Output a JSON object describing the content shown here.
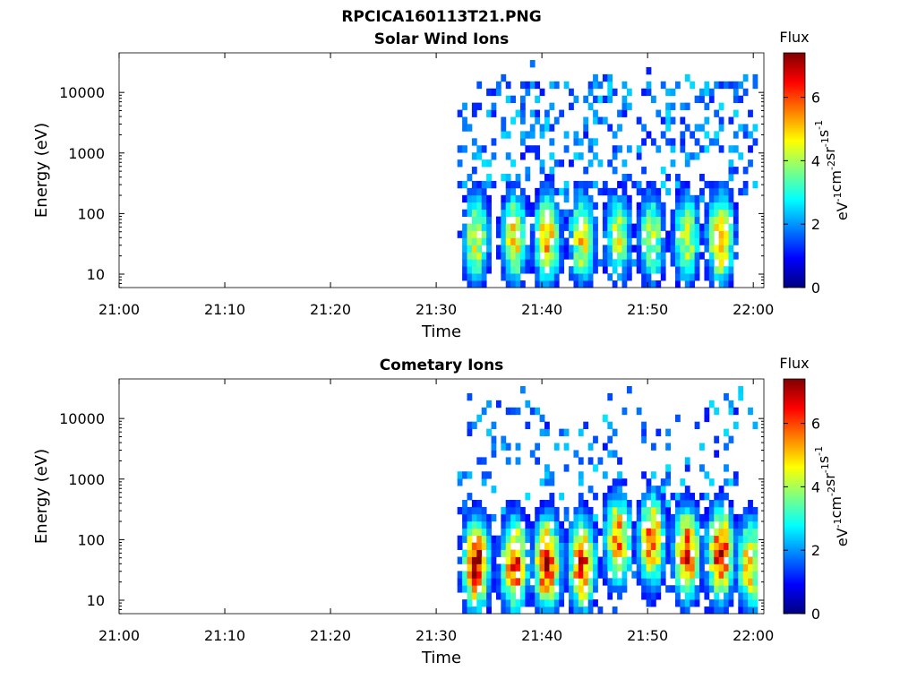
{
  "figure": {
    "title": "RPCICA160113T21.PNG"
  },
  "colors": {
    "colormap": [
      "#00007f",
      "#0000ff",
      "#0080ff",
      "#00ffff",
      "#80ff80",
      "#ffff00",
      "#ff8000",
      "#ff0000",
      "#7f0000"
    ],
    "axis": "#000000",
    "background": "#ffffff"
  },
  "chart_data": [
    {
      "type": "heatmap",
      "title": "Solar Wind Ions",
      "xlabel": "Time",
      "ylabel": "Energy (eV)",
      "x_range": [
        "21:00",
        "22:01"
      ],
      "y_scale": "log",
      "y_range": [
        6,
        45000
      ],
      "x_ticks": [
        "21:00",
        "21:10",
        "21:20",
        "21:30",
        "21:40",
        "21:50",
        "22:00"
      ],
      "y_ticks": [
        "10",
        "100",
        "1000",
        "10000"
      ],
      "data_start": "21:32",
      "colorbar": {
        "label": "Flux",
        "unit_parts": [
          "eV",
          "-1",
          "cm",
          "-2",
          "sr",
          "-1",
          "s",
          "-1"
        ],
        "range": [
          0,
          7.4
        ],
        "ticks": [
          "0",
          "2",
          "4",
          "6"
        ]
      },
      "bursts": [
        {
          "time": "21:33.8",
          "peak_energy": 40,
          "peak_flux": 4.8
        },
        {
          "time": "21:37.4",
          "peak_energy": 40,
          "peak_flux": 5.2
        },
        {
          "time": "21:40.5",
          "peak_energy": 40,
          "peak_flux": 5.5
        },
        {
          "time": "21:43.8",
          "peak_energy": 40,
          "peak_flux": 5.0
        },
        {
          "time": "21:47.2",
          "peak_energy": 40,
          "peak_flux": 4.5
        },
        {
          "time": "21:50.4",
          "peak_energy": 40,
          "peak_flux": 4.5
        },
        {
          "time": "21:53.7",
          "peak_energy": 40,
          "peak_flux": 4.6
        },
        {
          "time": "21:56.9",
          "peak_energy": 40,
          "peak_flux": 5.8
        }
      ]
    },
    {
      "type": "heatmap",
      "title": "Cometary Ions",
      "xlabel": "Time",
      "ylabel": "Energy (eV)",
      "x_range": [
        "21:00",
        "22:01"
      ],
      "y_scale": "log",
      "y_range": [
        6,
        45000
      ],
      "x_ticks": [
        "21:00",
        "21:10",
        "21:20",
        "21:30",
        "21:40",
        "21:50",
        "22:00"
      ],
      "y_ticks": [
        "10",
        "100",
        "1000",
        "10000"
      ],
      "data_start": "21:32",
      "colorbar": {
        "label": "Flux",
        "unit_parts": [
          "eV",
          "-1",
          "cm",
          "-2",
          "sr",
          "-1",
          "s",
          "-1"
        ],
        "range": [
          0,
          7.4
        ],
        "ticks": [
          "0",
          "2",
          "4",
          "6"
        ]
      },
      "bursts": [
        {
          "time": "21:33.8",
          "peak_energy": 40,
          "peak_flux": 7.0
        },
        {
          "time": "21:37.4",
          "peak_energy": 40,
          "peak_flux": 6.8
        },
        {
          "time": "21:40.5",
          "peak_energy": 40,
          "peak_flux": 7.2
        },
        {
          "time": "21:43.8",
          "peak_energy": 40,
          "peak_flux": 6.5
        },
        {
          "time": "21:47.2",
          "peak_energy": 100,
          "peak_flux": 6.0
        },
        {
          "time": "21:50.4",
          "peak_energy": 100,
          "peak_flux": 6.2
        },
        {
          "time": "21:53.7",
          "peak_energy": 60,
          "peak_flux": 6.6
        },
        {
          "time": "21:56.9",
          "peak_energy": 60,
          "peak_flux": 7.1
        },
        {
          "time": "21:59.7",
          "peak_energy": 40,
          "peak_flux": 5.5
        }
      ]
    }
  ]
}
